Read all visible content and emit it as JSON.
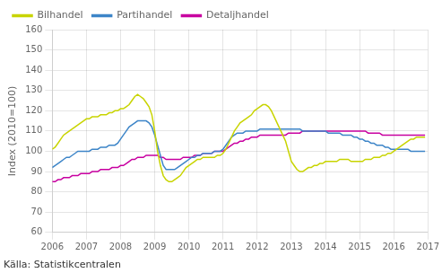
{
  "chart_data": {
    "type": "line",
    "y_label": "Index (2010=100)",
    "annotations": [
      "Källa: Statistikcentralen"
    ],
    "xlim": [
      2006.0,
      2017.0
    ],
    "xticks": [
      2006,
      2007,
      2008,
      2009,
      2010,
      2011,
      2012,
      2013,
      2014,
      2015,
      2016,
      2017
    ],
    "ylim": [
      60,
      160
    ],
    "yticks": [
      60,
      70,
      80,
      90,
      100,
      110,
      120,
      130,
      140,
      150,
      160
    ],
    "grid": true,
    "legend": "upper left",
    "x": [
      2006.0,
      2006.083,
      2006.167,
      2006.25,
      2006.333,
      2006.417,
      2006.5,
      2006.583,
      2006.667,
      2006.75,
      2006.833,
      2006.917,
      2007.0,
      2007.083,
      2007.167,
      2007.25,
      2007.333,
      2007.417,
      2007.5,
      2007.583,
      2007.667,
      2007.75,
      2007.833,
      2007.917,
      2008.0,
      2008.083,
      2008.167,
      2008.25,
      2008.333,
      2008.417,
      2008.5,
      2008.583,
      2008.667,
      2008.75,
      2008.833,
      2008.917,
      2009.0,
      2009.083,
      2009.167,
      2009.25,
      2009.333,
      2009.417,
      2009.5,
      2009.583,
      2009.667,
      2009.75,
      2009.833,
      2009.917,
      2010.0,
      2010.083,
      2010.167,
      2010.25,
      2010.333,
      2010.417,
      2010.5,
      2010.583,
      2010.667,
      2010.75,
      2010.833,
      2010.917,
      2011.0,
      2011.083,
      2011.167,
      2011.25,
      2011.333,
      2011.417,
      2011.5,
      2011.583,
      2011.667,
      2011.75,
      2011.833,
      2011.917,
      2012.0,
      2012.083,
      2012.167,
      2012.25,
      2012.333,
      2012.417,
      2012.5,
      2012.583,
      2012.667,
      2012.75,
      2012.833,
      2012.917,
      2013.0,
      2013.083,
      2013.167,
      2013.25,
      2013.333,
      2013.417,
      2013.5,
      2013.583,
      2013.667,
      2013.75,
      2013.833,
      2013.917,
      2014.0,
      2014.083,
      2014.167,
      2014.25,
      2014.333,
      2014.417,
      2014.5,
      2014.583,
      2014.667,
      2014.75,
      2014.833,
      2014.917,
      2015.0,
      2015.083,
      2015.167,
      2015.25,
      2015.333,
      2015.417,
      2015.5,
      2015.583,
      2015.667,
      2015.75,
      2015.833,
      2015.917,
      2016.0,
      2016.083,
      2016.167,
      2016.25,
      2016.333,
      2016.417,
      2016.5,
      2016.583,
      2016.667,
      2016.75,
      2016.833,
      2016.917
    ],
    "series": [
      {
        "name": "Bilhandel",
        "color": "#c8d400",
        "values": [
          101,
          102,
          104,
          106,
          108,
          109,
          110,
          111,
          112,
          113,
          114,
          115,
          116,
          116,
          117,
          117,
          117,
          118,
          118,
          118,
          119,
          119,
          120,
          120,
          121,
          121,
          122,
          123,
          125,
          127,
          128,
          127,
          126,
          124,
          122,
          118,
          110,
          100,
          93,
          88,
          86,
          85,
          85,
          86,
          87,
          88,
          90,
          92,
          93,
          94,
          95,
          96,
          96,
          97,
          97,
          97,
          97,
          97,
          98,
          98,
          99,
          101,
          104,
          107,
          110,
          112,
          114,
          115,
          116,
          117,
          118,
          120,
          121,
          122,
          123,
          123,
          122,
          120,
          117,
          114,
          111,
          108,
          105,
          100,
          95,
          93,
          91,
          90,
          90,
          91,
          92,
          92,
          93,
          93,
          94,
          94,
          95,
          95,
          95,
          95,
          95,
          96,
          96,
          96,
          96,
          95,
          95,
          95,
          95,
          95,
          96,
          96,
          96,
          97,
          97,
          97,
          98,
          98,
          99,
          99,
          100,
          101,
          102,
          103,
          104,
          105,
          106,
          106,
          107,
          107,
          107,
          107
        ]
      },
      {
        "name": "Partihandel",
        "color": "#3d85c8",
        "values": [
          92,
          93,
          94,
          95,
          96,
          97,
          97,
          98,
          99,
          100,
          100,
          100,
          100,
          100,
          101,
          101,
          101,
          102,
          102,
          102,
          103,
          103,
          103,
          104,
          106,
          108,
          110,
          112,
          113,
          114,
          115,
          115,
          115,
          115,
          114,
          112,
          108,
          103,
          98,
          93,
          91,
          91,
          91,
          91,
          92,
          93,
          94,
          95,
          96,
          97,
          97,
          98,
          98,
          99,
          99,
          99,
          99,
          100,
          100,
          100,
          101,
          103,
          105,
          107,
          108,
          109,
          109,
          109,
          110,
          110,
          110,
          110,
          110,
          111,
          111,
          111,
          111,
          111,
          111,
          111,
          111,
          111,
          111,
          111,
          111,
          111,
          111,
          111,
          110,
          110,
          110,
          110,
          110,
          110,
          110,
          110,
          110,
          109,
          109,
          109,
          109,
          109,
          108,
          108,
          108,
          108,
          107,
          107,
          106,
          106,
          105,
          105,
          104,
          104,
          103,
          103,
          103,
          102,
          102,
          101,
          101,
          101,
          101,
          101,
          101,
          101,
          100,
          100,
          100,
          100,
          100,
          100
        ]
      },
      {
        "name": "Detaljhandel",
        "color": "#c800a0",
        "values": [
          85,
          85,
          86,
          86,
          87,
          87,
          87,
          88,
          88,
          88,
          89,
          89,
          89,
          89,
          90,
          90,
          90,
          91,
          91,
          91,
          91,
          92,
          92,
          92,
          93,
          93,
          94,
          95,
          96,
          96,
          97,
          97,
          97,
          98,
          98,
          98,
          98,
          98,
          97,
          97,
          96,
          96,
          96,
          96,
          96,
          96,
          97,
          97,
          97,
          97,
          98,
          98,
          98,
          99,
          99,
          99,
          99,
          100,
          100,
          100,
          100,
          101,
          102,
          103,
          104,
          104,
          105,
          105,
          106,
          106,
          107,
          107,
          107,
          108,
          108,
          108,
          108,
          108,
          108,
          108,
          108,
          108,
          108,
          109,
          109,
          109,
          109,
          109,
          110,
          110,
          110,
          110,
          110,
          110,
          110,
          110,
          110,
          110,
          110,
          110,
          110,
          110,
          110,
          110,
          110,
          110,
          110,
          110,
          110,
          110,
          110,
          109,
          109,
          109,
          109,
          109,
          108,
          108,
          108,
          108,
          108,
          108,
          108,
          108,
          108,
          108,
          108,
          108,
          108,
          108,
          108,
          108
        ]
      }
    ]
  }
}
